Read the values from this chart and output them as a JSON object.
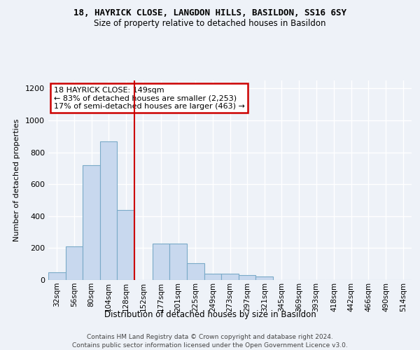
{
  "title1": "18, HAYRICK CLOSE, LANGDON HILLS, BASILDON, SS16 6SY",
  "title2": "Size of property relative to detached houses in Basildon",
  "xlabel": "Distribution of detached houses by size in Basildon",
  "ylabel": "Number of detached properties",
  "footer1": "Contains HM Land Registry data © Crown copyright and database right 2024.",
  "footer2": "Contains public sector information licensed under the Open Government Licence v3.0.",
  "annotation_line1": "18 HAYRICK CLOSE: 149sqm",
  "annotation_line2": "← 83% of detached houses are smaller (2,253)",
  "annotation_line3": "17% of semi-detached houses are larger (463) →",
  "bar_color": "#c8d8ee",
  "bar_edge_color": "#7aaac8",
  "vline_color": "#cc0000",
  "vline_x": 152,
  "categories": [
    "32sqm",
    "56sqm",
    "80sqm",
    "104sqm",
    "128sqm",
    "152sqm",
    "177sqm",
    "201sqm",
    "225sqm",
    "249sqm",
    "273sqm",
    "297sqm",
    "321sqm",
    "345sqm",
    "369sqm",
    "393sqm",
    "418sqm",
    "442sqm",
    "466sqm",
    "490sqm",
    "514sqm"
  ],
  "bin_starts": [
    32,
    56,
    80,
    104,
    128,
    152,
    177,
    201,
    225,
    249,
    273,
    297,
    321,
    345,
    369,
    393,
    418,
    442,
    466,
    490,
    514
  ],
  "bin_width": 24,
  "values": [
    50,
    210,
    720,
    870,
    440,
    0,
    230,
    230,
    105,
    40,
    40,
    30,
    20,
    0,
    0,
    0,
    0,
    0,
    0,
    0,
    0
  ],
  "ylim": [
    0,
    1250
  ],
  "yticks": [
    0,
    200,
    400,
    600,
    800,
    1000,
    1200
  ],
  "figsize": [
    6.0,
    5.0
  ],
  "dpi": 100,
  "background_color": "#eef2f8",
  "grid_color": "#ffffff"
}
